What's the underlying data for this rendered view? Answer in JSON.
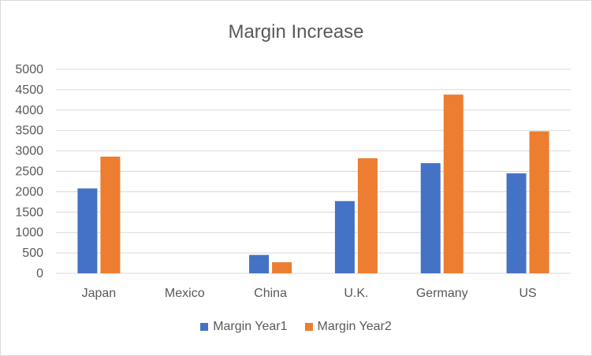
{
  "chart_data": {
    "type": "bar",
    "title": "Margin Increase",
    "categories": [
      "Japan",
      "Mexico",
      "China",
      "U.K.",
      "Germany",
      "US"
    ],
    "series": [
      {
        "name": "Margin Year1",
        "values": [
          2080,
          0,
          450,
          1770,
          2700,
          2450
        ],
        "color": "#4472c4"
      },
      {
        "name": "Margin Year2",
        "values": [
          2860,
          0,
          270,
          2820,
          4380,
          3480
        ],
        "color": "#ed7d31"
      }
    ],
    "yticks": [
      0,
      500,
      1000,
      1500,
      2000,
      2500,
      3000,
      3500,
      4000,
      4500,
      5000
    ],
    "ylim": [
      0,
      5000
    ],
    "grid": true,
    "legend_position": "bottom"
  }
}
